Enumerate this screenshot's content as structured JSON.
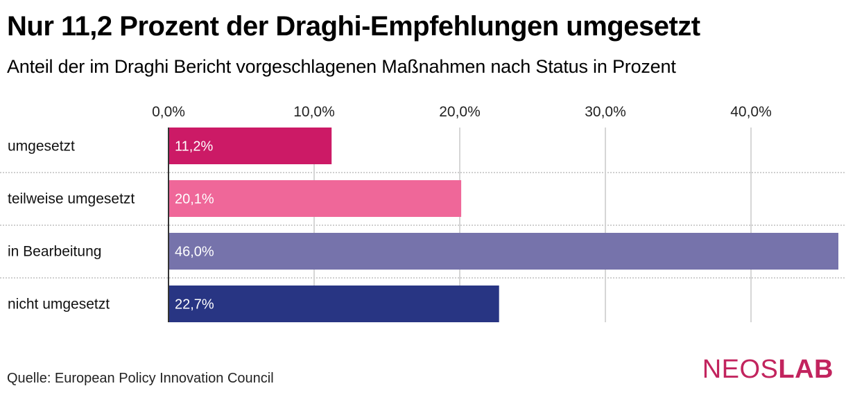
{
  "header": {
    "title": "Nur 11,2 Prozent der Draghi-Empfehlungen umgesetzt",
    "subtitle": "Anteil der im Draghi Bericht vorgeschlagenen Maßnahmen nach Status in Prozent"
  },
  "footer": {
    "source": "Quelle: European Policy Innovation Council",
    "logo_part1": "NEOS",
    "logo_part2": "LAB",
    "logo_color": "#c2245e"
  },
  "chart_data": {
    "type": "bar",
    "orientation": "horizontal",
    "title": "Nur 11,2 Prozent der Draghi-Empfehlungen umgesetzt",
    "subtitle": "Anteil der im Draghi Bericht vorgeschlagenen Maßnahmen nach Status in Prozent",
    "xlabel": "",
    "ylabel": "",
    "categories": [
      "umgesetzt",
      "teilweise umgesetzt",
      "in Bearbeitung",
      "nicht umgesetzt"
    ],
    "values": [
      11.2,
      20.1,
      46.0,
      22.7
    ],
    "value_labels": [
      "11,2%",
      "20,1%",
      "46,0%",
      "22,7%"
    ],
    "colors": [
      "#cc1a66",
      "#ef6799",
      "#7673ab",
      "#283583"
    ],
    "xlim": [
      0,
      46
    ],
    "xticks": [
      0,
      10,
      20,
      30,
      40
    ],
    "xtick_labels": [
      "0,0%",
      "10,0%",
      "20,0%",
      "30,0%",
      "40,0%"
    ],
    "xaxis_position": "top",
    "grid": true,
    "legend": "none",
    "source": "Quelle: European Policy Innovation Council"
  }
}
